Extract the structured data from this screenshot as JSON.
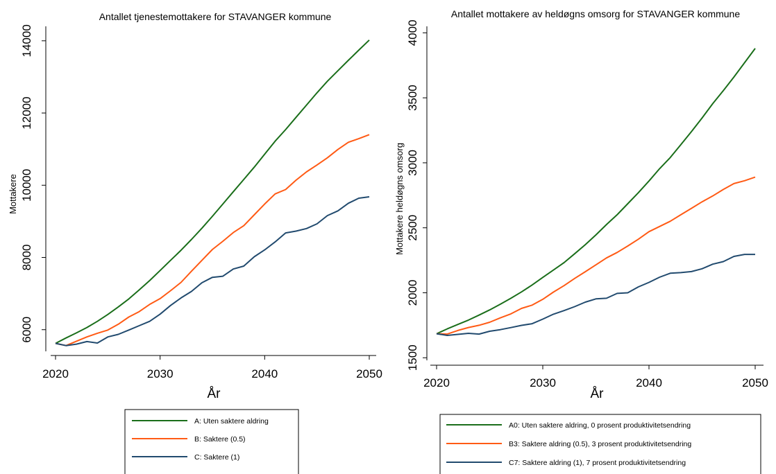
{
  "chart_data": [
    {
      "type": "line",
      "title": "Antallet tjenestemottakere for STAVANGER kommune",
      "xlabel": "År",
      "ylabel": "Mottakere",
      "xlim": [
        2020,
        2050
      ],
      "ylim": [
        5400,
        14400
      ],
      "xticks": [
        2020,
        2030,
        2040,
        2050
      ],
      "yticks": [
        6000,
        8000,
        10000,
        12000,
        14000
      ],
      "grid": false,
      "legend_position": "bottom",
      "x": [
        2020,
        2021,
        2022,
        2023,
        2024,
        2025,
        2026,
        2027,
        2028,
        2029,
        2030,
        2031,
        2032,
        2033,
        2034,
        2035,
        2036,
        2037,
        2038,
        2039,
        2040,
        2041,
        2042,
        2043,
        2044,
        2045,
        2046,
        2047,
        2048,
        2049,
        2050
      ],
      "series": [
        {
          "name": "A: Uten saktere aldring",
          "color": "#1a6e1a",
          "values": [
            5620,
            5770,
            5910,
            6060,
            6230,
            6420,
            6630,
            6850,
            7100,
            7360,
            7640,
            7920,
            8200,
            8500,
            8810,
            9140,
            9480,
            9820,
            10160,
            10500,
            10860,
            11220,
            11540,
            11880,
            12220,
            12560,
            12880,
            13170,
            13460,
            13740,
            14020
          ]
        },
        {
          "name": "B: Saktere (0.5)",
          "color": "#ff5a14",
          "values": [
            5620,
            5560,
            5680,
            5800,
            5900,
            5990,
            6150,
            6350,
            6500,
            6700,
            6860,
            7080,
            7310,
            7620,
            7920,
            8220,
            8450,
            8690,
            8880,
            9180,
            9480,
            9760,
            9880,
            10140,
            10370,
            10560,
            10760,
            10990,
            11190,
            11290,
            11400
          ]
        },
        {
          "name": "C: Saktere (1)",
          "color": "#214a6e",
          "values": [
            5620,
            5560,
            5600,
            5670,
            5630,
            5800,
            5870,
            5990,
            6110,
            6230,
            6430,
            6670,
            6880,
            7060,
            7300,
            7450,
            7480,
            7680,
            7760,
            8020,
            8210,
            8430,
            8680,
            8730,
            8800,
            8930,
            9160,
            9290,
            9500,
            9640,
            9680
          ]
        }
      ]
    },
    {
      "type": "line",
      "title": "Antallet mottakere av heldøgns omsorg for STAVANGER kommune",
      "xlabel": "År",
      "ylabel": "Mottakere heldøgns omsorg",
      "xlim": [
        2020,
        2050
      ],
      "ylim": [
        1480,
        4050
      ],
      "xticks": [
        2020,
        2030,
        2040,
        2050
      ],
      "yticks": [
        1500,
        2000,
        2500,
        3000,
        3500,
        4000
      ],
      "grid": false,
      "legend_position": "bottom",
      "x": [
        2020,
        2021,
        2022,
        2023,
        2024,
        2025,
        2026,
        2027,
        2028,
        2029,
        2030,
        2031,
        2032,
        2033,
        2034,
        2035,
        2036,
        2037,
        2038,
        2039,
        2040,
        2041,
        2042,
        2043,
        2044,
        2045,
        2046,
        2047,
        2048,
        2049,
        2050
      ],
      "series": [
        {
          "name": "A0: Uten saktere aldring, 0 prosent produktivitetsendring",
          "color": "#1a6e1a",
          "values": [
            1685,
            1722,
            1756,
            1790,
            1828,
            1868,
            1912,
            1958,
            2007,
            2060,
            2118,
            2175,
            2232,
            2300,
            2370,
            2445,
            2525,
            2600,
            2685,
            2770,
            2860,
            2955,
            3040,
            3140,
            3240,
            3345,
            3455,
            3555,
            3660,
            3770,
            3880
          ]
        },
        {
          "name": "B3: Saktere aldring (0.5), 3 prosent produktivitetsendring",
          "color": "#ff5a14",
          "values": [
            1685,
            1682,
            1710,
            1733,
            1750,
            1773,
            1807,
            1838,
            1880,
            1905,
            1950,
            2005,
            2055,
            2110,
            2162,
            2215,
            2268,
            2310,
            2360,
            2412,
            2470,
            2510,
            2550,
            2600,
            2650,
            2700,
            2745,
            2795,
            2840,
            2862,
            2890
          ]
        },
        {
          "name": "C7: Saktere aldring (1), 7 prosent produktivitetsendring",
          "color": "#214a6e",
          "values": [
            1685,
            1672,
            1680,
            1688,
            1682,
            1704,
            1716,
            1732,
            1749,
            1762,
            1797,
            1835,
            1863,
            1893,
            1928,
            1953,
            1958,
            1995,
            2000,
            2045,
            2080,
            2120,
            2150,
            2155,
            2163,
            2185,
            2220,
            2240,
            2280,
            2295,
            2295
          ]
        }
      ]
    }
  ]
}
